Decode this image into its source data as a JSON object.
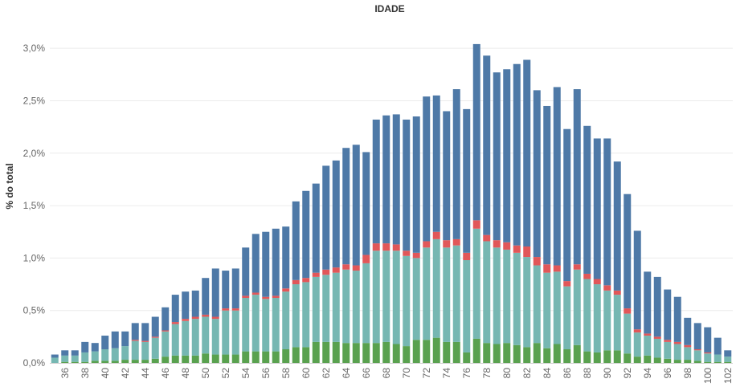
{
  "chart_data": {
    "type": "bar",
    "stacked": true,
    "title": "IDADE",
    "xlabel": "",
    "ylabel": "% do total",
    "ylim": [
      0,
      3.2
    ],
    "yticks": [
      0,
      0.5,
      1.0,
      1.5,
      2.0,
      2.5,
      3.0
    ],
    "ytick_labels": [
      "0,0%",
      "0,5%",
      "1,0%",
      "1,5%",
      "2,0%",
      "2,5%",
      "3,0%"
    ],
    "grid": true,
    "legend": "none",
    "x": [
      35,
      36,
      37,
      38,
      39,
      40,
      41,
      42,
      43,
      44,
      45,
      46,
      47,
      48,
      49,
      50,
      51,
      52,
      53,
      54,
      55,
      56,
      57,
      58,
      59,
      60,
      61,
      62,
      63,
      64,
      65,
      66,
      67,
      68,
      69,
      70,
      71,
      72,
      73,
      74,
      75,
      76,
      77,
      78,
      79,
      80,
      81,
      82,
      83,
      84,
      85,
      86,
      87,
      88,
      89,
      90,
      91,
      92,
      93,
      94,
      95,
      96,
      97,
      98,
      99,
      100,
      101,
      102
    ],
    "xtick_labels": [
      "36",
      "38",
      "40",
      "42",
      "44",
      "46",
      "48",
      "50",
      "52",
      "54",
      "56",
      "58",
      "60",
      "62",
      "64",
      "66",
      "68",
      "70",
      "72",
      "74",
      "76",
      "78",
      "80",
      "82",
      "84",
      "86",
      "88",
      "90",
      "92",
      "94",
      "96",
      "98",
      "100",
      "102"
    ],
    "series": [
      {
        "color": "#59a14f",
        "values": [
          0.0,
          0.01,
          0.01,
          0.01,
          0.02,
          0.02,
          0.02,
          0.03,
          0.03,
          0.03,
          0.04,
          0.06,
          0.07,
          0.07,
          0.07,
          0.09,
          0.08,
          0.08,
          0.08,
          0.11,
          0.11,
          0.11,
          0.11,
          0.13,
          0.15,
          0.15,
          0.2,
          0.2,
          0.2,
          0.19,
          0.19,
          0.19,
          0.19,
          0.2,
          0.18,
          0.16,
          0.22,
          0.22,
          0.24,
          0.2,
          0.2,
          0.1,
          0.23,
          0.19,
          0.18,
          0.19,
          0.17,
          0.15,
          0.19,
          0.14,
          0.18,
          0.13,
          0.17,
          0.11,
          0.1,
          0.12,
          0.12,
          0.09,
          0.06,
          0.07,
          0.05,
          0.04,
          0.03,
          0.03,
          0.02,
          0.01,
          0.01,
          0.01
        ]
      },
      {
        "color": "#76b7b2",
        "values": [
          0.05,
          0.06,
          0.06,
          0.09,
          0.09,
          0.11,
          0.12,
          0.13,
          0.18,
          0.17,
          0.2,
          0.24,
          0.3,
          0.33,
          0.35,
          0.35,
          0.34,
          0.42,
          0.42,
          0.51,
          0.54,
          0.5,
          0.51,
          0.55,
          0.6,
          0.62,
          0.62,
          0.64,
          0.66,
          0.7,
          0.69,
          0.76,
          0.88,
          0.87,
          0.89,
          0.86,
          0.78,
          0.88,
          0.94,
          0.9,
          0.92,
          0.88,
          1.05,
          0.97,
          0.92,
          0.89,
          0.88,
          0.86,
          0.74,
          0.72,
          0.69,
          0.6,
          0.72,
          0.69,
          0.65,
          0.57,
          0.53,
          0.38,
          0.23,
          0.19,
          0.18,
          0.16,
          0.15,
          0.12,
          0.1,
          0.08,
          0.07,
          0.05
        ]
      },
      {
        "color": "#e15759",
        "values": [
          0.0,
          0.0,
          0.0,
          0.0,
          0.0,
          0.0,
          0.0,
          0.0,
          0.01,
          0.01,
          0.01,
          0.01,
          0.02,
          0.02,
          0.02,
          0.02,
          0.02,
          0.02,
          0.02,
          0.02,
          0.02,
          0.02,
          0.02,
          0.03,
          0.04,
          0.04,
          0.04,
          0.05,
          0.05,
          0.05,
          0.05,
          0.08,
          0.07,
          0.07,
          0.06,
          0.05,
          0.05,
          0.06,
          0.07,
          0.07,
          0.06,
          0.07,
          0.08,
          0.06,
          0.07,
          0.07,
          0.07,
          0.1,
          0.08,
          0.08,
          0.06,
          0.05,
          0.05,
          0.05,
          0.05,
          0.05,
          0.04,
          0.05,
          0.03,
          0.02,
          0.02,
          0.02,
          0.02,
          0.02,
          0.01,
          0.01,
          0.0,
          0.0
        ]
      },
      {
        "color": "#4e79a7",
        "values": [
          0.03,
          0.05,
          0.05,
          0.1,
          0.08,
          0.13,
          0.16,
          0.14,
          0.16,
          0.17,
          0.19,
          0.22,
          0.26,
          0.26,
          0.25,
          0.35,
          0.46,
          0.36,
          0.38,
          0.46,
          0.56,
          0.62,
          0.64,
          0.59,
          0.75,
          0.83,
          0.85,
          0.99,
          1.02,
          1.11,
          1.15,
          0.98,
          1.18,
          1.22,
          1.24,
          1.25,
          1.3,
          1.38,
          1.3,
          1.23,
          1.43,
          1.37,
          1.68,
          1.71,
          1.6,
          1.65,
          1.73,
          1.78,
          1.59,
          1.51,
          1.7,
          1.45,
          1.67,
          1.41,
          1.34,
          1.4,
          1.23,
          1.09,
          0.94,
          0.59,
          0.57,
          0.48,
          0.43,
          0.26,
          0.25,
          0.24,
          0.16,
          0.06
        ]
      }
    ]
  }
}
